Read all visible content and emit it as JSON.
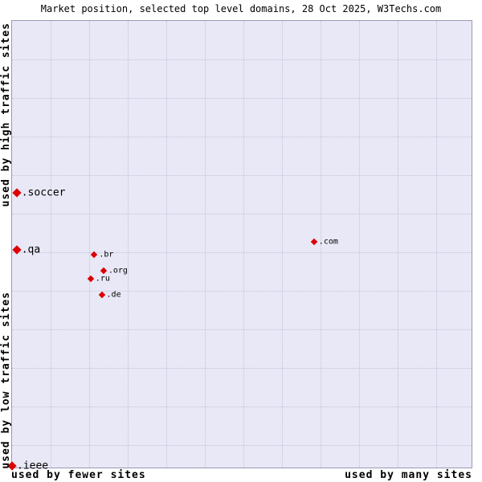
{
  "title": "Market position, selected top level domains, 28 Oct 2025, W3Techs.com",
  "axis_labels": {
    "y_high": "used by high traffic sites",
    "y_low": "used by low traffic sites",
    "x_left": "used by fewer sites",
    "x_right": "used by many sites"
  },
  "colors": {
    "plot_background": "#e8e8f6",
    "grid_line": "#c3c3de",
    "plot_border": "#9a9ab4",
    "marker": "#dd0000",
    "text": "#000000"
  },
  "chart_data": {
    "type": "scatter",
    "title": "Market position, selected top level domains, 28 Oct 2025, W3Techs.com",
    "x_axis": {
      "left_label": "used by fewer sites",
      "right_label": "used by many sites"
    },
    "y_axis": {
      "top_label": "used by high traffic sites",
      "bottom_label": "used by low traffic sites"
    },
    "marker": "diamond",
    "marker_color": "#dd0000",
    "grid": true,
    "points": [
      {
        "label": ".soccer",
        "x_pct": 1.0,
        "y_pct_from_top": 38.5,
        "label_size": "large"
      },
      {
        "label": ".qa",
        "x_pct": 1.0,
        "y_pct_from_top": 51.3,
        "label_size": "large"
      },
      {
        "label": ".br",
        "x_pct": 17.9,
        "y_pct_from_top": 52.3,
        "label_size": "small"
      },
      {
        "label": ".com",
        "x_pct": 65.7,
        "y_pct_from_top": 49.5,
        "label_size": "small"
      },
      {
        "label": ".org",
        "x_pct": 19.9,
        "y_pct_from_top": 55.9,
        "label_size": "small"
      },
      {
        "label": ".ru",
        "x_pct": 17.1,
        "y_pct_from_top": 57.7,
        "label_size": "small"
      },
      {
        "label": ".de",
        "x_pct": 19.5,
        "y_pct_from_top": 61.3,
        "label_size": "small"
      },
      {
        "label": ".ieee",
        "x_pct": 0.0,
        "y_pct_from_top": 99.6,
        "label_size": "large"
      }
    ]
  }
}
